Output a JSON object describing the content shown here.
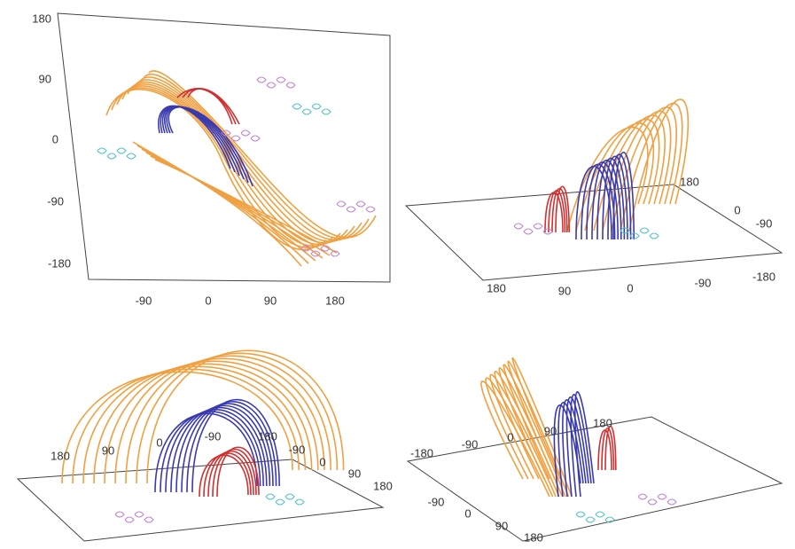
{
  "panels": [
    {
      "ticks": [
        "180",
        "90",
        "0",
        "-90",
        "-180",
        "-90",
        "0",
        "90",
        "180"
      ]
    },
    {
      "ticks": [
        "180",
        "0",
        "-90",
        "-180",
        "-90",
        "0",
        "90",
        "180"
      ]
    },
    {
      "ticks": [
        "180",
        "90",
        "0",
        "-90",
        "180",
        "-90",
        "0",
        "90",
        "180"
      ]
    },
    {
      "ticks": [
        "180",
        "-180",
        "-90",
        "0",
        "90",
        "-90",
        "0",
        "90",
        "180"
      ]
    }
  ]
}
